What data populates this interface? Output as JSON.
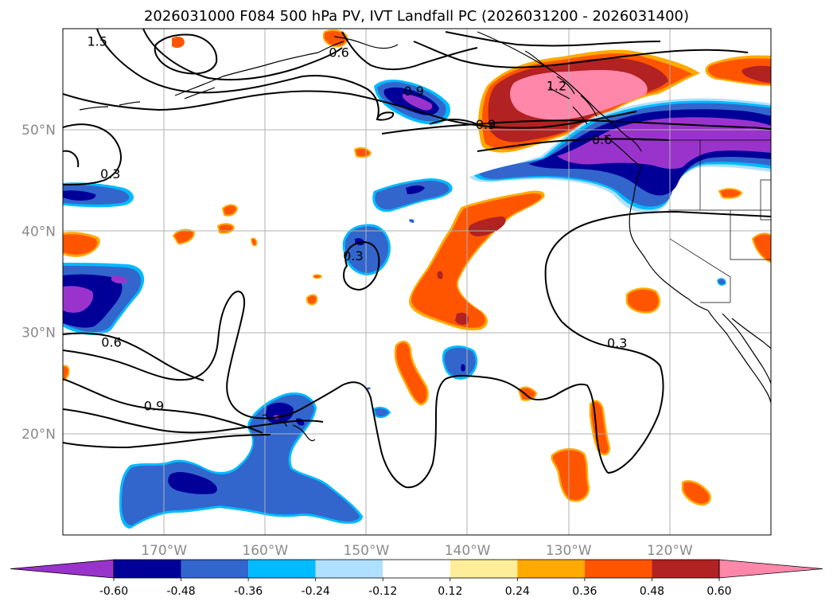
{
  "title": "2026031000 F084 500 hPa PV, IVT Landfall PC (2026031200 - 2026031400)",
  "map": {
    "lon_range": [
      -180,
      -110
    ],
    "lat_range": [
      10,
      60
    ],
    "lon_ticks": [
      {
        "lon": -170,
        "label": "170°W"
      },
      {
        "lon": -160,
        "label": "160°W"
      },
      {
        "lon": -150,
        "label": "150°W"
      },
      {
        "lon": -140,
        "label": "140°W"
      },
      {
        "lon": -130,
        "label": "130°W"
      },
      {
        "lon": -120,
        "label": "120°W"
      }
    ],
    "lat_ticks": [
      {
        "lat": 50,
        "label": "50°N"
      },
      {
        "lat": 40,
        "label": "40°N"
      },
      {
        "lat": 30,
        "label": "30°N"
      },
      {
        "lat": 20,
        "label": "20°N"
      }
    ],
    "contour_labels": [
      {
        "text": "1.5",
        "lon": -176.6,
        "lat": 58.7
      },
      {
        "text": "0.6",
        "lon": -152.7,
        "lat": 57.6
      },
      {
        "text": "0.9",
        "lon": -145.3,
        "lat": 53.8
      },
      {
        "text": "1.2",
        "lon": -131.2,
        "lat": 54.3
      },
      {
        "text": "0.9",
        "lon": -138.2,
        "lat": 50.5
      },
      {
        "text": "0.6",
        "lon": -126.7,
        "lat": 49.0
      },
      {
        "text": "0.3",
        "lon": -175.3,
        "lat": 45.6
      },
      {
        "text": "0.3",
        "lon": -151.3,
        "lat": 37.5
      },
      {
        "text": "0.6",
        "lon": -175.2,
        "lat": 29.0
      },
      {
        "text": "0.3",
        "lon": -125.2,
        "lat": 28.9
      },
      {
        "text": "0.9",
        "lon": -171.0,
        "lat": 22.7
      }
    ]
  },
  "colorbar": {
    "levels": [
      "-0.60",
      "-0.48",
      "-0.36",
      "-0.24",
      "-0.12",
      "0.12",
      "0.24",
      "0.36",
      "0.48",
      "0.60"
    ],
    "colors": [
      "#9933cc",
      "#000099",
      "#3366cc",
      "#00bbff",
      "#b0e0ff",
      "#ffffff",
      "#ffee99",
      "#ffaa00",
      "#ff5500",
      "#b22222",
      "#ff88aa"
    ],
    "extend": "both"
  },
  "colors": {
    "contour_line": "#000000",
    "coast_line": "#000000",
    "grid_line": "#b0b0b0",
    "tick_label": "#8a8a8a"
  }
}
